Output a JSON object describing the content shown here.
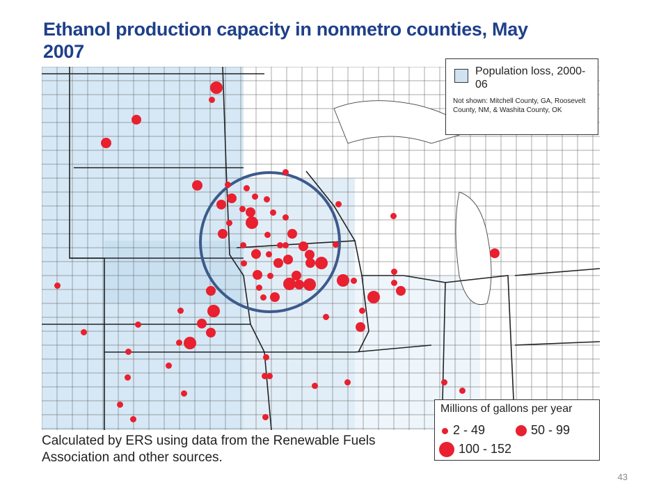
{
  "title": "Ethanol production capacity in nonmetro counties, May 2007",
  "legend": {
    "swatch_label": "Population loss, 2000-06",
    "note": "Not shown: Mitchell County, GA, Roosevelt County, NM, & Washita County, OK",
    "size_title": "Millions of gallons per year",
    "sizes": [
      "2 - 49",
      "50 - 99",
      "100 - 152"
    ]
  },
  "colors": {
    "title": "#1f3f8a",
    "dot": "#e8202f",
    "loss": "#cfe3f2",
    "circle": "#3d5a8c"
  },
  "source": "Calculated by ERS using data from the Renewable Fuels Association and other sources.",
  "page_number": "43"
}
